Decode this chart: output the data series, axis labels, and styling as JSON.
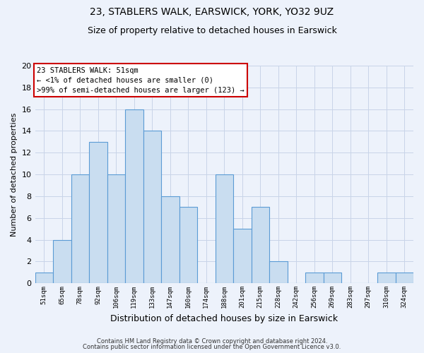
{
  "title": "23, STABLERS WALK, EARSWICK, YORK, YO32 9UZ",
  "subtitle": "Size of property relative to detached houses in Earswick",
  "xlabel": "Distribution of detached houses by size in Earswick",
  "ylabel": "Number of detached properties",
  "bar_labels": [
    "51sqm",
    "65sqm",
    "78sqm",
    "92sqm",
    "106sqm",
    "119sqm",
    "133sqm",
    "147sqm",
    "160sqm",
    "174sqm",
    "188sqm",
    "201sqm",
    "215sqm",
    "228sqm",
    "242sqm",
    "256sqm",
    "269sqm",
    "283sqm",
    "297sqm",
    "310sqm",
    "324sqm"
  ],
  "bar_values": [
    1,
    4,
    10,
    13,
    10,
    16,
    14,
    8,
    7,
    0,
    10,
    5,
    7,
    2,
    0,
    1,
    1,
    0,
    0,
    1,
    1
  ],
  "bar_color": "#c9ddf0",
  "bar_edge_color": "#5b9bd5",
  "ylim": [
    0,
    20
  ],
  "yticks": [
    0,
    2,
    4,
    6,
    8,
    10,
    12,
    14,
    16,
    18,
    20
  ],
  "annotation_line1": "23 STABLERS WALK: 51sqm",
  "annotation_line2": "← <1% of detached houses are smaller (0)",
  "annotation_line3": ">99% of semi-detached houses are larger (123) →",
  "annotation_box_facecolor": "#ffffff",
  "annotation_box_edgecolor": "#cc0000",
  "footer_line1": "Contains HM Land Registry data © Crown copyright and database right 2024.",
  "footer_line2": "Contains public sector information licensed under the Open Government Licence v3.0.",
  "bg_color": "#edf2fb",
  "plot_bg_color": "#edf2fb",
  "grid_color": "#c8d4e8",
  "title_fontsize": 10,
  "subtitle_fontsize": 9
}
